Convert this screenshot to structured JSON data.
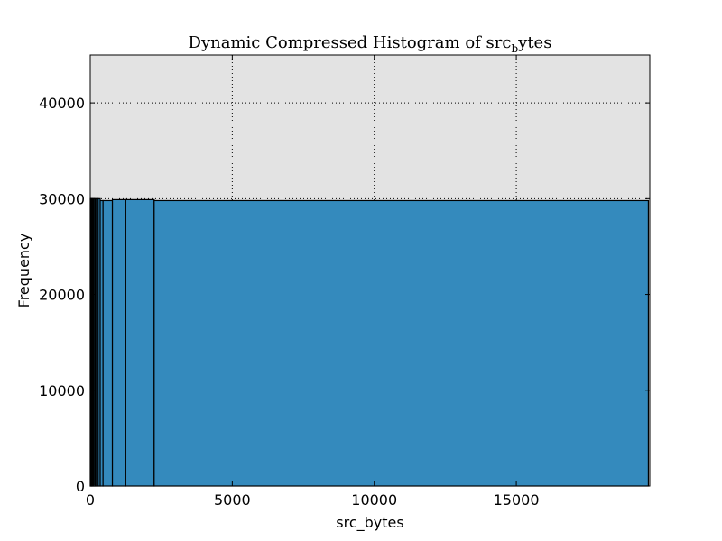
{
  "chart_data": {
    "type": "bar",
    "title": "Dynamic Compressed Histogram of src",
    "title_subscript": "b",
    "title_suffix": "ytes",
    "xlabel": "src_bytes",
    "ylabel": "Frequency",
    "xlim": [
      0,
      19700
    ],
    "ylim": [
      0,
      45000
    ],
    "xticks": [
      0,
      5000,
      10000,
      15000
    ],
    "yticks": [
      0,
      10000,
      20000,
      30000,
      40000
    ],
    "grid": true,
    "background": "#e3e3e3",
    "bar_color": "#348abd",
    "bar_edge_color": "#000000",
    "bins": [
      {
        "x0": 0,
        "x1": 20,
        "value": 30000
      },
      {
        "x0": 20,
        "x1": 45,
        "value": 30000
      },
      {
        "x0": 45,
        "x1": 70,
        "value": 30000
      },
      {
        "x0": 70,
        "x1": 100,
        "value": 30000
      },
      {
        "x0": 100,
        "x1": 135,
        "value": 30000
      },
      {
        "x0": 135,
        "x1": 175,
        "value": 30000
      },
      {
        "x0": 175,
        "x1": 220,
        "value": 30000
      },
      {
        "x0": 220,
        "x1": 280,
        "value": 30000
      },
      {
        "x0": 280,
        "x1": 350,
        "value": 30000
      },
      {
        "x0": 350,
        "x1": 450,
        "value": 29800
      },
      {
        "x0": 450,
        "x1": 780,
        "value": 29800
      },
      {
        "x0": 780,
        "x1": 1250,
        "value": 29900
      },
      {
        "x0": 1250,
        "x1": 2250,
        "value": 29900
      },
      {
        "x0": 2250,
        "x1": 19650,
        "value": 29800
      }
    ]
  }
}
